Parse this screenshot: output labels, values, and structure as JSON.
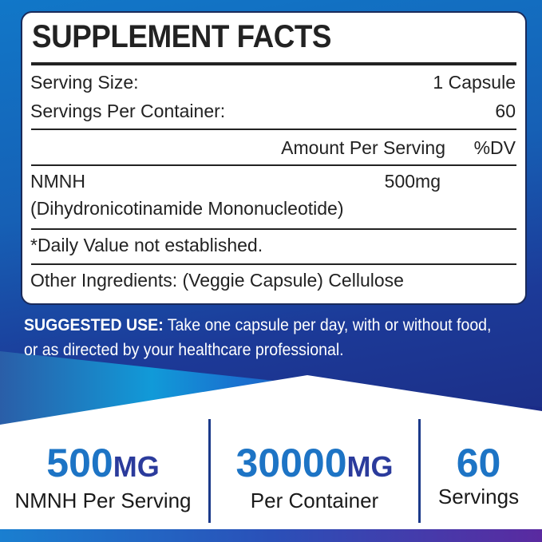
{
  "facts": {
    "title": "SUPPLEMENT FACTS",
    "serving_size_label": "Serving Size:",
    "serving_size_value": "1 Capsule",
    "servings_label": "Servings Per Container:",
    "servings_value": "60",
    "amount_header": "Amount Per Serving",
    "dv_header": "%DV",
    "ingredient_name": "NMNH",
    "ingredient_full": "(Dihydronicotinamide Mononucleotide)",
    "ingredient_amount": "500mg",
    "footnote": "*Daily Value not established.",
    "other": "Other Ingredients: (Veggie Capsule) Cellulose"
  },
  "suggested_use": {
    "label": "SUGGESTED USE:",
    "text": " Take one capsule per day, with or without food, or as directed by your healthcare professional."
  },
  "stats": [
    {
      "value": "500",
      "unit": "MG",
      "label": "NMNH Per Serving"
    },
    {
      "value": "30000",
      "unit": "MG",
      "label": "Per Container"
    },
    {
      "value": "60",
      "unit": "",
      "label": "Servings"
    }
  ],
  "colors": {
    "accent": "#1d74c5",
    "unit": "#2b3b9c",
    "background": "#1c3a98"
  }
}
